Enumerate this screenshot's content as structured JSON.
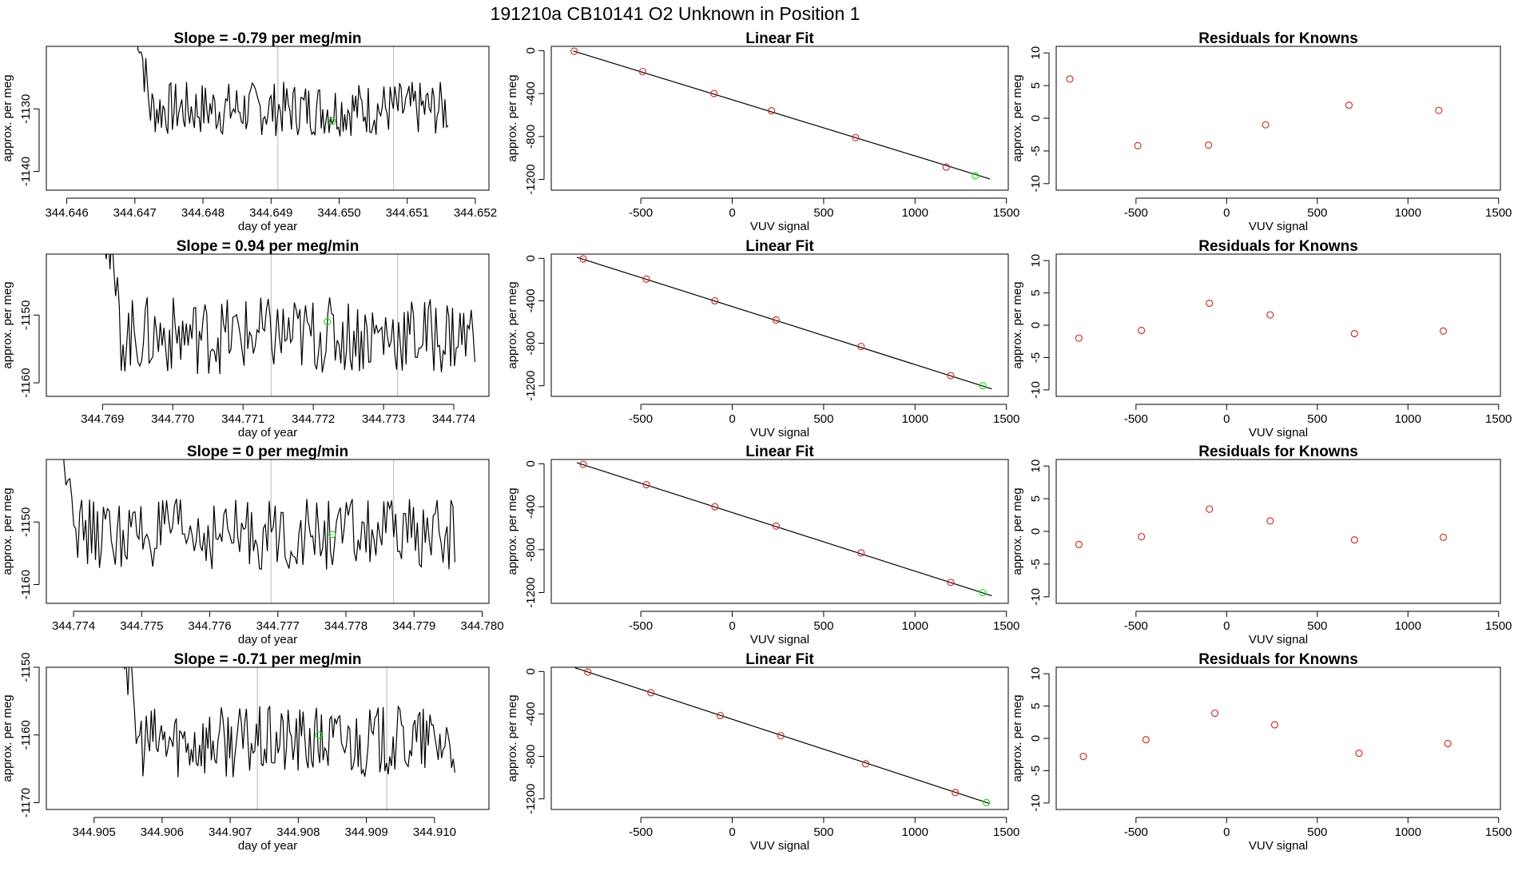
{
  "figure_title": "191210a      CB10141    O2 Unknown in Position  1",
  "colors": {
    "line": "#000000",
    "frame": "#000000",
    "marker_calib": "#cc3333",
    "marker_unknown": "#22dd22",
    "vline": "#c8c8c8"
  },
  "chart_data": [
    {
      "type": "line",
      "row": 1,
      "title": "Slope =  -0.79  per meg/min",
      "xlabel": "day of year",
      "ylabel": "approx. per meg",
      "xlim": [
        344.6457,
        344.6522
      ],
      "ylim": [
        -1143,
        -1120
      ],
      "xticks": [
        "344.646",
        "344.647",
        "344.648",
        "344.649",
        "344.650",
        "344.651",
        "344.652"
      ],
      "yticks": [
        "-1130",
        "-1140"
      ],
      "vlines": [
        344.6491,
        344.6508
      ],
      "start": 344.647,
      "end": 344.6516,
      "baseline": -1130,
      "amplitude": 2.0,
      "unknown_point": [
        344.6499,
        -1132
      ]
    },
    {
      "type": "scatter",
      "row": 1,
      "title": "Linear Fit",
      "xlabel": "VUV signal",
      "ylabel": "approx. per meg",
      "xlim": [
        -990,
        1510
      ],
      "ylim": [
        -1300,
        40
      ],
      "xticks": [
        "-500",
        "0",
        "500",
        "1000",
        "1500"
      ],
      "yticks": [
        "0",
        "-400",
        "-800",
        "-1200"
      ],
      "points": [
        [
          -865,
          -5
        ],
        [
          -490,
          -195
        ],
        [
          -100,
          -400
        ],
        [
          215,
          -560
        ],
        [
          675,
          -810
        ],
        [
          1170,
          -1085
        ]
      ],
      "unknown_point": [
        1330,
        -1165
      ],
      "fit_line": [
        [
          -870,
          -3
        ],
        [
          1410,
          -1195
        ]
      ]
    },
    {
      "type": "scatter",
      "row": 1,
      "title": "Residuals for Knowns",
      "xlabel": "VUV signal",
      "ylabel": "approx. per meg",
      "xlim": [
        -940,
        1510
      ],
      "ylim": [
        -11,
        11
      ],
      "xticks": [
        "-500",
        "0",
        "500",
        "1000",
        "1500"
      ],
      "yticks": [
        "10",
        "5",
        "0",
        "-5",
        "-10"
      ],
      "points": [
        [
          -865,
          6
        ],
        [
          -490,
          -4.2
        ],
        [
          -100,
          -4.1
        ],
        [
          215,
          -1
        ],
        [
          675,
          2
        ],
        [
          1170,
          1.2
        ]
      ]
    },
    {
      "type": "line",
      "row": 2,
      "title": "Slope =  0.94  per meg/min",
      "xlabel": "day of year",
      "ylabel": "approx. per meg",
      "xlim": [
        344.7682,
        344.7745
      ],
      "ylim": [
        -1162,
        -1141
      ],
      "xticks": [
        "344.769",
        "344.770",
        "344.771",
        "344.772",
        "344.773",
        "344.774"
      ],
      "yticks": [
        "-1150",
        "-1160"
      ],
      "vlines": [
        344.7714,
        344.7732
      ],
      "start": 344.769,
      "end": 344.7743,
      "baseline": -1153,
      "amplitude": 2.6,
      "unknown_point": [
        344.7722,
        -1151
      ]
    },
    {
      "type": "scatter",
      "row": 2,
      "title": "Linear Fit",
      "xlabel": "VUV signal",
      "ylabel": "approx. per meg",
      "xlim": [
        -990,
        1510
      ],
      "ylim": [
        -1300,
        40
      ],
      "xticks": [
        "-500",
        "0",
        "500",
        "1000",
        "1500"
      ],
      "yticks": [
        "0",
        "-400",
        "-800",
        "-1200"
      ],
      "points": [
        [
          -815,
          -5
        ],
        [
          -470,
          -195
        ],
        [
          -95,
          -400
        ],
        [
          240,
          -580
        ],
        [
          705,
          -830
        ],
        [
          1195,
          -1105
        ]
      ],
      "unknown_point": [
        1370,
        -1200
      ],
      "fit_line": [
        [
          -850,
          10
        ],
        [
          1420,
          -1230
        ]
      ]
    },
    {
      "type": "scatter",
      "row": 2,
      "title": "Residuals for Knowns",
      "xlabel": "VUV signal",
      "ylabel": "approx. per meg",
      "xlim": [
        -940,
        1510
      ],
      "ylim": [
        -11,
        11
      ],
      "xticks": [
        "-500",
        "0",
        "500",
        "1000",
        "1500"
      ],
      "yticks": [
        "10",
        "5",
        "0",
        "-5",
        "-10"
      ],
      "points": [
        [
          -815,
          -2
        ],
        [
          -470,
          -0.8
        ],
        [
          -95,
          3.4
        ],
        [
          240,
          1.6
        ],
        [
          705,
          -1.3
        ],
        [
          1195,
          -0.9
        ]
      ]
    },
    {
      "type": "line",
      "row": 3,
      "title": "Slope =  0",
      "title_suffix": "  per meg/min",
      "xlabel": "day of year",
      "ylabel": "approx. per meg",
      "xlim": [
        344.7736,
        344.7801
      ],
      "ylim": [
        -1163,
        -1140
      ],
      "xticks": [
        "344.774",
        "344.775",
        "344.776",
        "344.777",
        "344.778",
        "344.779",
        "344.780"
      ],
      "yticks": [
        "-1150",
        "-1160"
      ],
      "vlines": [
        344.7769,
        344.7787
      ],
      "start": 344.7738,
      "end": 344.7796,
      "baseline": -1152,
      "amplitude": 2.6,
      "unknown_point": [
        344.7778,
        -1152
      ]
    },
    {
      "type": "scatter",
      "row": 3,
      "title": "Linear Fit",
      "xlabel": "VUV signal",
      "ylabel": "approx. per meg",
      "xlim": [
        -990,
        1510
      ],
      "ylim": [
        -1300,
        40
      ],
      "xticks": [
        "-500",
        "0",
        "500",
        "1000",
        "1500"
      ],
      "yticks": [
        "0",
        "-400",
        "-800",
        "-1200"
      ],
      "points": [
        [
          -815,
          -5
        ],
        [
          -470,
          -195
        ],
        [
          -95,
          -400
        ],
        [
          240,
          -580
        ],
        [
          705,
          -830
        ],
        [
          1195,
          -1105
        ]
      ],
      "unknown_point": [
        1370,
        -1200
      ],
      "fit_line": [
        [
          -850,
          10
        ],
        [
          1420,
          -1230
        ]
      ]
    },
    {
      "type": "scatter",
      "row": 3,
      "title": "Residuals for Knowns",
      "xlabel": "VUV signal",
      "ylabel": "approx. per meg",
      "xlim": [
        -940,
        1510
      ],
      "ylim": [
        -11,
        11
      ],
      "xticks": [
        "-500",
        "0",
        "500",
        "1000",
        "1500"
      ],
      "yticks": [
        "10",
        "5",
        "0",
        "-5",
        "-10"
      ],
      "points": [
        [
          -815,
          -2
        ],
        [
          -470,
          -0.8
        ],
        [
          -95,
          3.4
        ],
        [
          240,
          1.6
        ],
        [
          705,
          -1.3
        ],
        [
          1195,
          -0.9
        ]
      ]
    },
    {
      "type": "line",
      "row": 4,
      "title": "Slope =  -0.71  per meg/min",
      "xlabel": "day of year",
      "ylabel": "approx. per meg",
      "xlim": [
        344.9043,
        344.9108
      ],
      "ylim": [
        -1171,
        -1150
      ],
      "xticks": [
        "344.905",
        "344.906",
        "344.907",
        "344.908",
        "344.909",
        "344.910"
      ],
      "yticks": [
        "-1150",
        "-1160",
        "-1170"
      ],
      "vlines": [
        344.9074,
        344.9093
      ],
      "start": 344.9054,
      "end": 344.9103,
      "baseline": -1161,
      "amplitude": 2.4,
      "unknown_point": [
        344.9083,
        -1160
      ]
    },
    {
      "type": "scatter",
      "row": 4,
      "title": "Linear Fit",
      "xlabel": "VUV signal",
      "ylabel": "approx. per meg",
      "xlim": [
        -990,
        1510
      ],
      "ylim": [
        -1300,
        40
      ],
      "xticks": [
        "-500",
        "0",
        "500",
        "1000",
        "1500"
      ],
      "yticks": [
        "0",
        "-400",
        "-800",
        "-1200"
      ],
      "points": [
        [
          -790,
          -5
        ],
        [
          -445,
          -200
        ],
        [
          -65,
          -415
        ],
        [
          265,
          -605
        ],
        [
          730,
          -870
        ],
        [
          1220,
          -1140
        ]
      ],
      "unknown_point": [
        1390,
        -1235
      ],
      "fit_line": [
        [
          -860,
          35
        ],
        [
          1410,
          -1245
        ]
      ]
    },
    {
      "type": "scatter",
      "row": 4,
      "title": "Residuals for Knowns",
      "xlabel": "VUV signal",
      "ylabel": "approx. per meg",
      "xlim": [
        -940,
        1510
      ],
      "ylim": [
        -11,
        11
      ],
      "xticks": [
        "-500",
        "0",
        "500",
        "1000",
        "1500"
      ],
      "yticks": [
        "10",
        "5",
        "0",
        "-5",
        "-10"
      ],
      "points": [
        [
          -790,
          -2.8
        ],
        [
          -445,
          -0.2
        ],
        [
          -65,
          3.9
        ],
        [
          265,
          2.1
        ],
        [
          730,
          -2.3
        ],
        [
          1220,
          -0.8
        ]
      ]
    }
  ]
}
